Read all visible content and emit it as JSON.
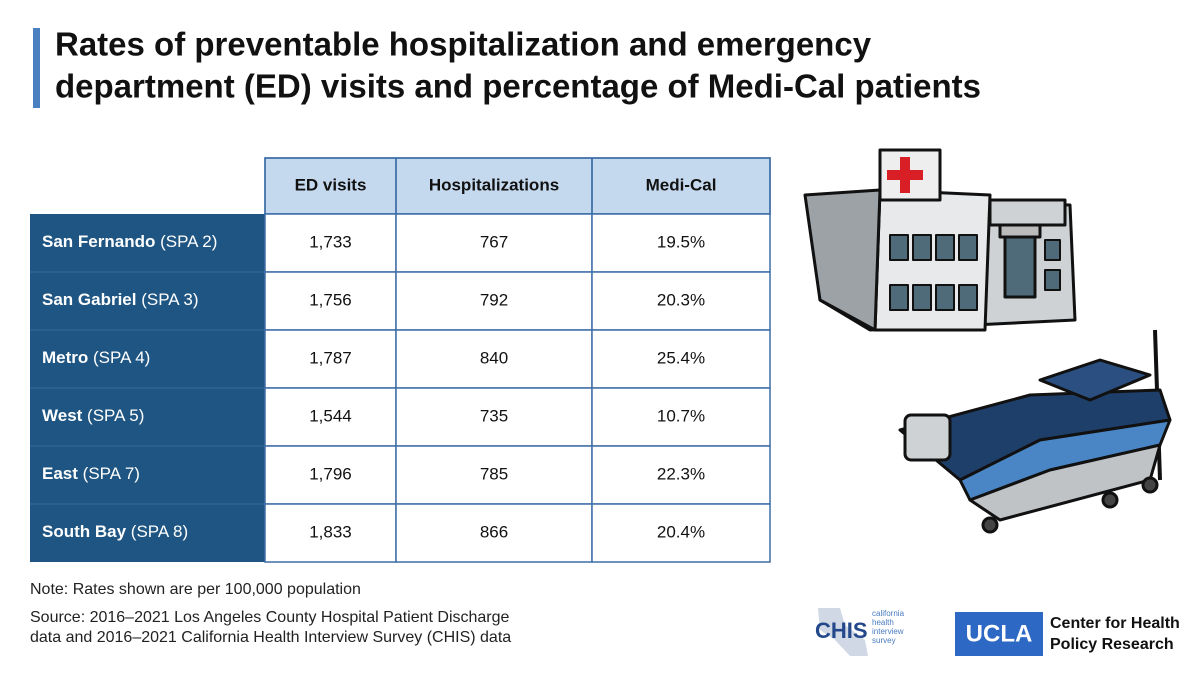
{
  "title": [
    "Rates of preventable hospitalization and emergency",
    "department (ED) visits and percentage of Medi-Cal patients"
  ],
  "table": {
    "headers": [
      "ED visits",
      "Hospitalizations",
      "Medi-Cal"
    ],
    "rows": [
      {
        "name": [
          "San Fernando",
          "(SPA 2)"
        ],
        "cells": [
          "1,733",
          "767",
          "19.5%"
        ]
      },
      {
        "name": [
          "San Gabriel",
          "(SPA 3)"
        ],
        "cells": [
          "1,756",
          "792",
          "20.3%"
        ]
      },
      {
        "name": [
          "Metro",
          "(SPA 4)"
        ],
        "cells": [
          "1,787",
          "840",
          "25.4%"
        ]
      },
      {
        "name": [
          "West",
          "(SPA 5)"
        ],
        "cells": [
          "1,544",
          "735",
          "10.7%"
        ]
      },
      {
        "name": [
          "East",
          "(SPA 7)"
        ],
        "cells": [
          "1,796",
          "785",
          "22.3%"
        ]
      },
      {
        "name": [
          "South Bay",
          "(SPA 8)"
        ],
        "cells": [
          "1,833",
          "866",
          "20.4%"
        ]
      }
    ]
  },
  "note": "Note: Rates shown are per 100,000 population",
  "source": [
    "Source: 2016–2021 Los Angeles County Hospital Patient Discharge",
    "data and 2016–2021 California Health Interview Survey (CHIS) data"
  ],
  "logos": {
    "chis": {
      "name": "CHIS",
      "tagline": [
        "california",
        "health",
        "interview",
        "survey"
      ]
    },
    "ucla": {
      "name": "UCLA",
      "center": [
        "Center for Health",
        "Policy Research"
      ]
    }
  }
}
